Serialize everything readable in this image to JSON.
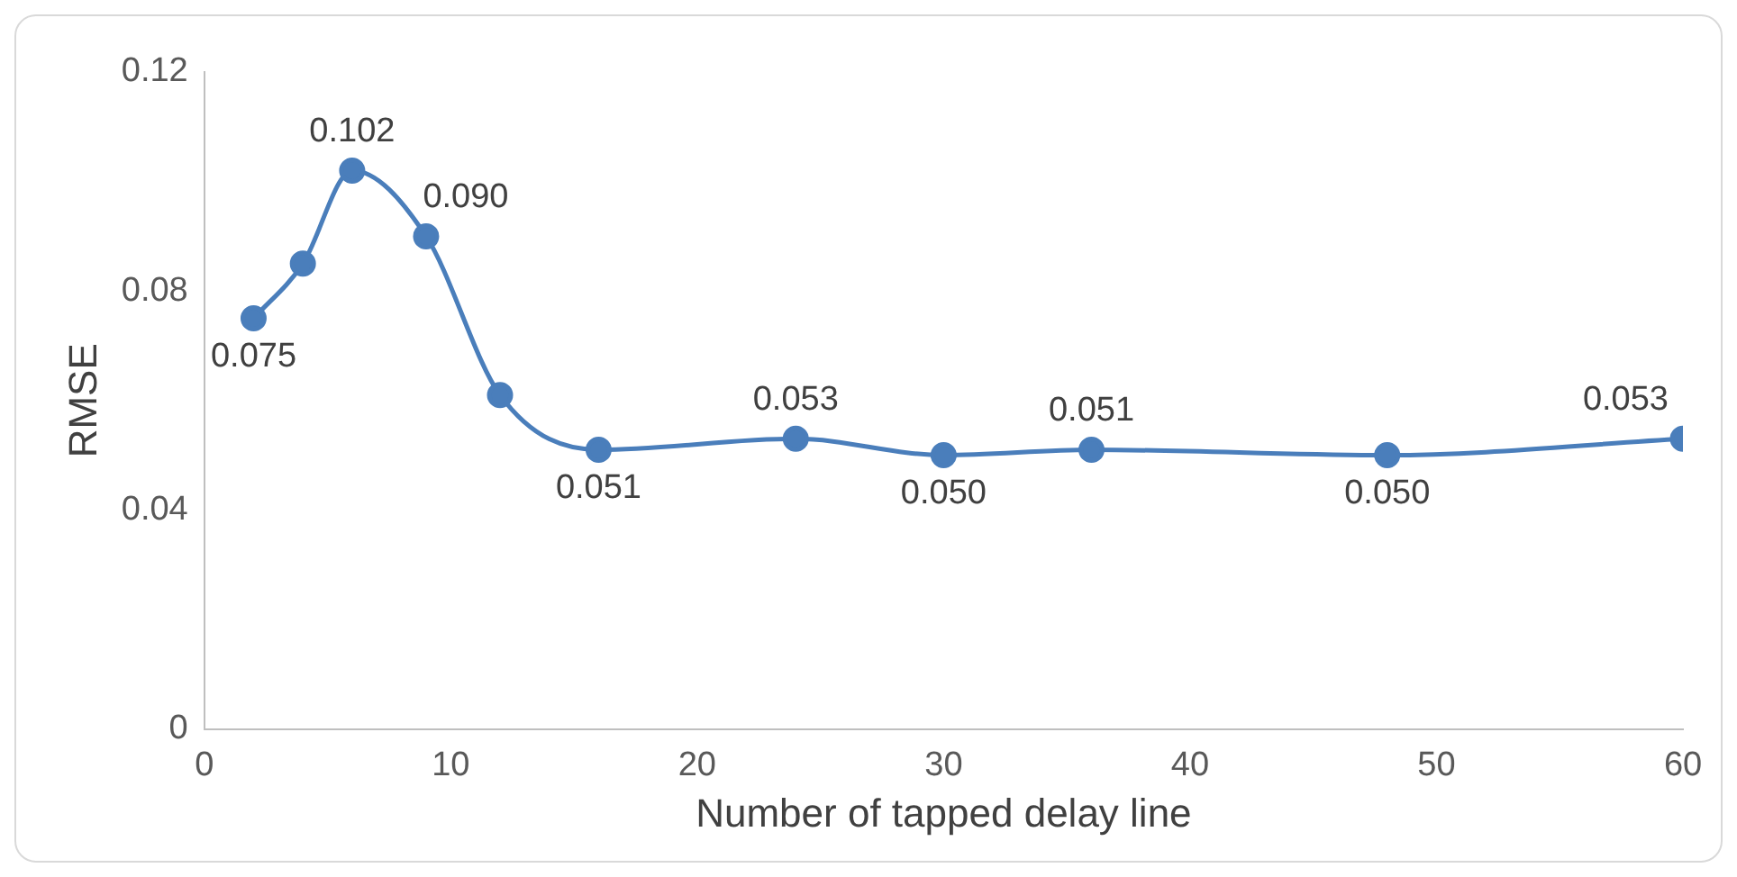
{
  "chart_data": {
    "type": "line",
    "xlabel": "Number of tapped delay line",
    "ylabel": "RMSE",
    "x": [
      2,
      4,
      6,
      9,
      12,
      16,
      24,
      30,
      36,
      48,
      60
    ],
    "series": [
      {
        "color": "#4a7ebb",
        "values": [
          0.075,
          0.085,
          0.102,
          0.09,
          0.061,
          0.051,
          0.053,
          0.05,
          0.051,
          0.05,
          0.053
        ],
        "value_labels": [
          "0.075",
          null,
          "0.102",
          "0.090",
          null,
          "0.051",
          "0.053",
          "0.050",
          "0.051",
          "0.050",
          "0.053"
        ]
      }
    ],
    "xlim": [
      0,
      60
    ],
    "xticks": [
      0,
      10,
      20,
      30,
      40,
      50,
      60
    ],
    "ylim": [
      0,
      0.12
    ],
    "yticks": [
      0,
      0.04,
      0.08,
      0.12
    ],
    "grid": false,
    "legend": false,
    "marker": "circle",
    "line_style": "solid"
  }
}
